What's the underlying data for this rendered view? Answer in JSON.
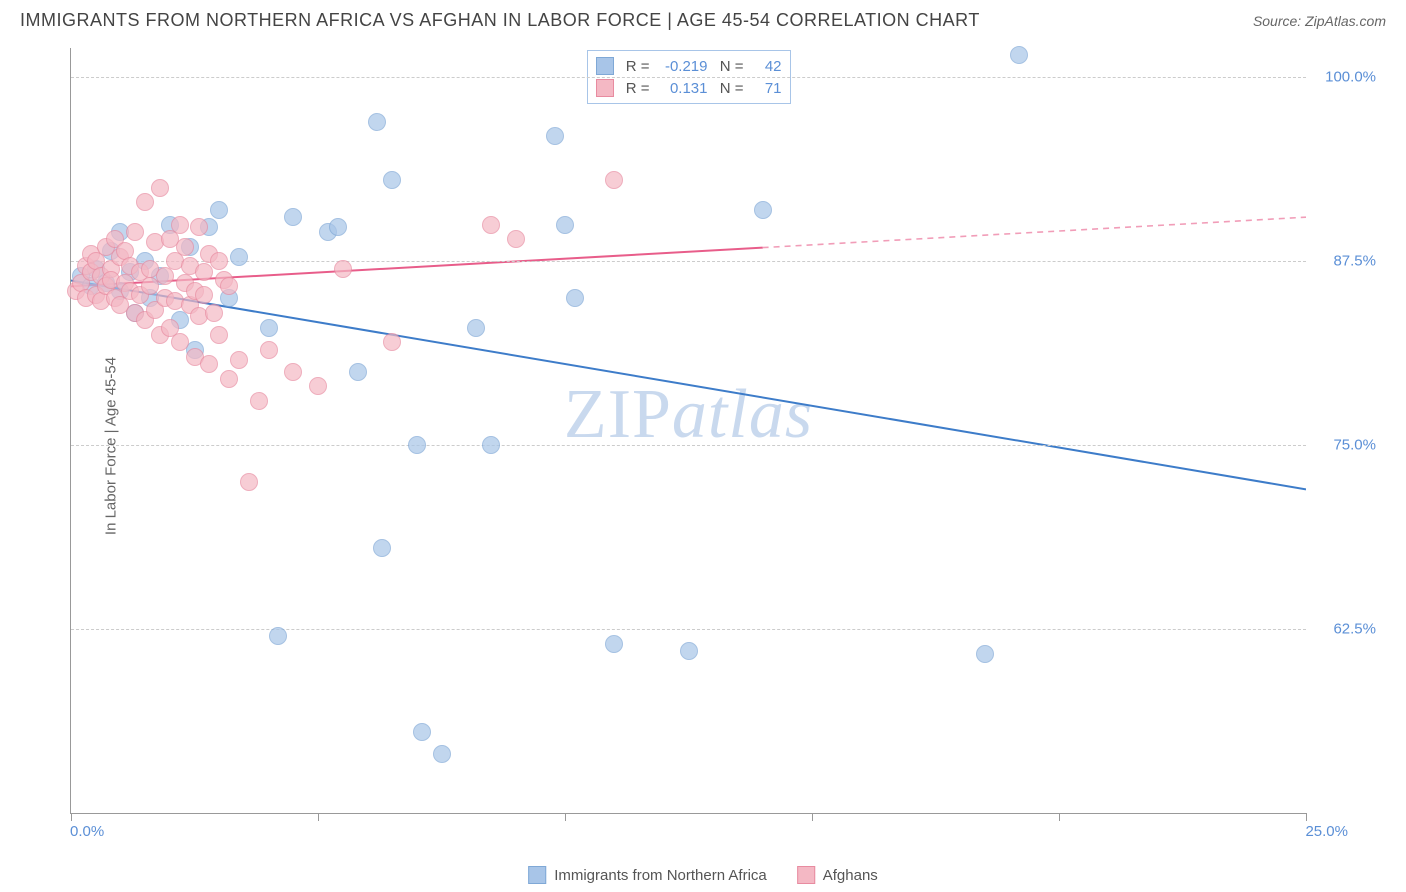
{
  "title": "IMMIGRANTS FROM NORTHERN AFRICA VS AFGHAN IN LABOR FORCE | AGE 45-54 CORRELATION CHART",
  "source": "Source: ZipAtlas.com",
  "watermark1": "ZIP",
  "watermark2": "atlas",
  "chart": {
    "type": "scatter",
    "ylabel": "In Labor Force | Age 45-54",
    "xlim": [
      0,
      25
    ],
    "ylim": [
      50,
      102
    ],
    "xtick_positions": [
      0,
      5,
      10,
      15,
      20,
      25
    ],
    "xtick_labels": {
      "0": "0.0%",
      "25": "25.0%"
    },
    "ytick_positions": [
      62.5,
      75.0,
      87.5,
      100.0
    ],
    "ytick_labels": [
      "62.5%",
      "75.0%",
      "87.5%",
      "100.0%"
    ],
    "grid_color": "#cccccc",
    "axis_color": "#999999",
    "background_color": "#ffffff",
    "series": [
      {
        "name": "Immigrants from Northern Africa",
        "fill": "#a8c5e8",
        "stroke": "#7fa8d6",
        "opacity": 0.7,
        "radius": 9,
        "R": "-0.219",
        "N": "42",
        "trend": {
          "x1": 0,
          "y1": 86.2,
          "x2": 25,
          "y2": 72.0,
          "solid_until_x": 25,
          "color": "#3d7cc9",
          "width": 2
        },
        "points": [
          [
            0.2,
            86.5
          ],
          [
            0.4,
            85.8
          ],
          [
            0.5,
            87.0
          ],
          [
            0.7,
            86.0
          ],
          [
            0.8,
            88.2
          ],
          [
            1.0,
            85.5
          ],
          [
            1.0,
            89.5
          ],
          [
            1.2,
            86.8
          ],
          [
            1.3,
            84.0
          ],
          [
            1.5,
            87.5
          ],
          [
            1.6,
            85.0
          ],
          [
            1.8,
            86.5
          ],
          [
            2.0,
            90.0
          ],
          [
            2.2,
            83.5
          ],
          [
            2.4,
            88.5
          ],
          [
            2.5,
            81.5
          ],
          [
            2.8,
            89.8
          ],
          [
            3.0,
            91.0
          ],
          [
            3.2,
            85.0
          ],
          [
            3.4,
            87.8
          ],
          [
            4.0,
            83.0
          ],
          [
            4.2,
            62.0
          ],
          [
            4.5,
            90.5
          ],
          [
            5.2,
            89.5
          ],
          [
            5.4,
            89.8
          ],
          [
            5.8,
            80.0
          ],
          [
            6.2,
            97.0
          ],
          [
            6.3,
            68.0
          ],
          [
            6.5,
            93.0
          ],
          [
            7.0,
            75.0
          ],
          [
            7.1,
            55.5
          ],
          [
            7.5,
            54.0
          ],
          [
            8.2,
            83.0
          ],
          [
            8.5,
            75.0
          ],
          [
            9.8,
            96.0
          ],
          [
            10.0,
            90.0
          ],
          [
            10.2,
            85.0
          ],
          [
            11.0,
            61.5
          ],
          [
            12.5,
            61.0
          ],
          [
            14.0,
            91.0
          ],
          [
            18.5,
            60.8
          ],
          [
            19.2,
            101.5
          ]
        ]
      },
      {
        "name": "Afghans",
        "fill": "#f4b8c4",
        "stroke": "#e88ba0",
        "opacity": 0.7,
        "radius": 9,
        "R": "0.131",
        "N": "71",
        "trend": {
          "x1": 0,
          "y1": 85.8,
          "x2": 25,
          "y2": 90.5,
          "solid_until_x": 14,
          "color": "#e85d8a",
          "width": 2
        },
        "points": [
          [
            0.1,
            85.5
          ],
          [
            0.2,
            86.0
          ],
          [
            0.3,
            87.2
          ],
          [
            0.3,
            85.0
          ],
          [
            0.4,
            86.8
          ],
          [
            0.4,
            88.0
          ],
          [
            0.5,
            85.2
          ],
          [
            0.5,
            87.5
          ],
          [
            0.6,
            86.5
          ],
          [
            0.6,
            84.8
          ],
          [
            0.7,
            88.5
          ],
          [
            0.7,
            85.8
          ],
          [
            0.8,
            87.0
          ],
          [
            0.8,
            86.2
          ],
          [
            0.9,
            89.0
          ],
          [
            0.9,
            85.0
          ],
          [
            1.0,
            87.8
          ],
          [
            1.0,
            84.5
          ],
          [
            1.1,
            86.0
          ],
          [
            1.1,
            88.2
          ],
          [
            1.2,
            85.5
          ],
          [
            1.2,
            87.2
          ],
          [
            1.3,
            89.5
          ],
          [
            1.3,
            84.0
          ],
          [
            1.4,
            86.8
          ],
          [
            1.4,
            85.2
          ],
          [
            1.5,
            91.5
          ],
          [
            1.5,
            83.5
          ],
          [
            1.6,
            87.0
          ],
          [
            1.6,
            85.8
          ],
          [
            1.7,
            88.8
          ],
          [
            1.7,
            84.2
          ],
          [
            1.8,
            92.5
          ],
          [
            1.8,
            82.5
          ],
          [
            1.9,
            86.5
          ],
          [
            1.9,
            85.0
          ],
          [
            2.0,
            89.0
          ],
          [
            2.0,
            83.0
          ],
          [
            2.1,
            87.5
          ],
          [
            2.1,
            84.8
          ],
          [
            2.2,
            90.0
          ],
          [
            2.2,
            82.0
          ],
          [
            2.3,
            86.0
          ],
          [
            2.3,
            88.5
          ],
          [
            2.4,
            84.5
          ],
          [
            2.4,
            87.2
          ],
          [
            2.5,
            81.0
          ],
          [
            2.5,
            85.5
          ],
          [
            2.6,
            89.8
          ],
          [
            2.6,
            83.8
          ],
          [
            2.7,
            86.8
          ],
          [
            2.7,
            85.2
          ],
          [
            2.8,
            80.5
          ],
          [
            2.8,
            88.0
          ],
          [
            2.9,
            84.0
          ],
          [
            3.0,
            87.5
          ],
          [
            3.0,
            82.5
          ],
          [
            3.1,
            86.2
          ],
          [
            3.2,
            79.5
          ],
          [
            3.2,
            85.8
          ],
          [
            3.4,
            80.8
          ],
          [
            3.6,
            72.5
          ],
          [
            3.8,
            78.0
          ],
          [
            4.0,
            81.5
          ],
          [
            4.5,
            80.0
          ],
          [
            5.0,
            79.0
          ],
          [
            5.5,
            87.0
          ],
          [
            6.5,
            82.0
          ],
          [
            8.5,
            90.0
          ],
          [
            9.0,
            89.0
          ],
          [
            11.0,
            93.0
          ]
        ]
      }
    ]
  },
  "stat_legend": {
    "rows": [
      {
        "swatch_fill": "#a8c5e8",
        "swatch_stroke": "#7fa8d6",
        "R": "-0.219",
        "N": "42"
      },
      {
        "swatch_fill": "#f4b8c4",
        "swatch_stroke": "#e88ba0",
        "R": "0.131",
        "N": "71"
      }
    ],
    "label_R": "R =",
    "label_N": "N ="
  },
  "bottom_legend": {
    "items": [
      {
        "swatch_fill": "#a8c5e8",
        "swatch_stroke": "#7fa8d6",
        "label": "Immigrants from Northern Africa"
      },
      {
        "swatch_fill": "#f4b8c4",
        "swatch_stroke": "#e88ba0",
        "label": "Afghans"
      }
    ]
  }
}
